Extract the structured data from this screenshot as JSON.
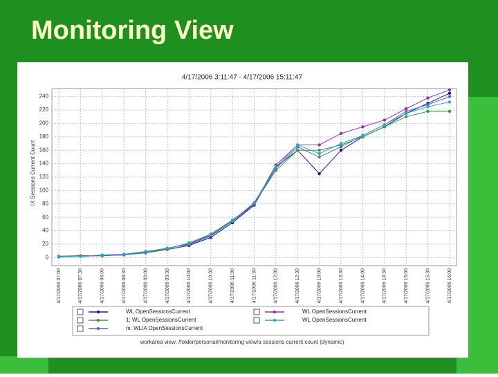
{
  "slide_title": "Monitoring View",
  "footer": "workarea view: /folder/personal/monitoring view/a sessions current count (dynamic)",
  "chart_data": {
    "type": "line",
    "title": "4/17/2006 3:11:47 - 4/17/2006 15:11:47",
    "y_label": "IX Sessions Current Count",
    "categories": [
      "4/17/2006 07:00",
      "4/17/2006 07:30",
      "4/17/2006 08:00",
      "4/17/2006 08:30",
      "4/17/2006 09:00",
      "4/17/2006 09:30",
      "4/17/2006 10:00",
      "4/17/2006 10:30",
      "4/17/2006 11:00",
      "4/17/2006 11:30",
      "4/17/2006 12:00",
      "4/17/2006 12:30",
      "4/17/2006 13:00",
      "4/17/2006 13:30",
      "4/17/2006 14:00",
      "4/17/2006 14:30",
      "4/17/2006 15:00",
      "4/17/2006 15:30",
      "4/17/2006 16:00"
    ],
    "series": [
      {
        "name": "WL OpenSessionsCurrent",
        "color": "#1a1a8c",
        "values": [
          2,
          2,
          3,
          4,
          8,
          12,
          18,
          30,
          52,
          78,
          135,
          160,
          125,
          160,
          180,
          195,
          215,
          230,
          245
        ]
      },
      {
        "name": "1: WL OpenSessionsCurrent",
        "color": "#3a9a3a",
        "values": [
          1,
          2,
          3,
          4,
          8,
          13,
          22,
          35,
          56,
          80,
          130,
          160,
          160,
          168,
          180,
          195,
          210,
          218,
          218
        ]
      },
      {
        "name": "m: WLIA OpenSessionsCurrent",
        "color": "#5a6abf",
        "values": [
          1,
          2,
          3,
          4,
          7,
          12,
          19,
          32,
          54,
          79,
          133,
          165,
          150,
          165,
          182,
          198,
          218,
          228,
          240
        ]
      },
      {
        "name": "WL OpenSessionsCurrent",
        "color": "#9b2fae",
        "values": [
          2,
          3,
          3,
          5,
          9,
          14,
          20,
          33,
          55,
          80,
          138,
          168,
          168,
          185,
          195,
          205,
          222,
          238,
          250
        ]
      },
      {
        "name": "WL OpenSessionsCurrent",
        "color": "#2aa9b8",
        "values": [
          2,
          2,
          4,
          5,
          9,
          14,
          21,
          34,
          55,
          82,
          135,
          168,
          155,
          170,
          182,
          198,
          215,
          225,
          232
        ]
      }
    ],
    "ylim": [
      -12,
      252
    ],
    "yticks": [
      0,
      20,
      40,
      60,
      80,
      100,
      120,
      140,
      160,
      180,
      200,
      220,
      240
    ],
    "grid": true
  }
}
